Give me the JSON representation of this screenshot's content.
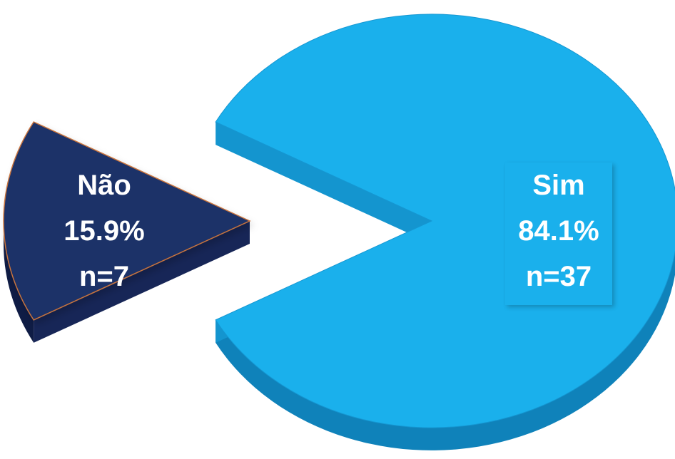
{
  "chart_data": {
    "type": "pie",
    "title": "",
    "style": "3d-exploded",
    "slices": [
      {
        "name": "Não",
        "percent": 15.9,
        "n": 7,
        "percent_label": "15.9%",
        "n_label": "n=7",
        "color": "#1d3068",
        "exploded": true
      },
      {
        "name": "Sim",
        "percent": 84.1,
        "n": 37,
        "percent_label": "84.1%",
        "n_label": "n=37",
        "color": "#1ab0ec",
        "exploded": false
      }
    ],
    "colors": {
      "sim_side": "#1495cf",
      "sim_side_dark": "#0f82ba",
      "nao_side": "#0f1c45",
      "label_box_sim": "#1ab0ec"
    }
  }
}
